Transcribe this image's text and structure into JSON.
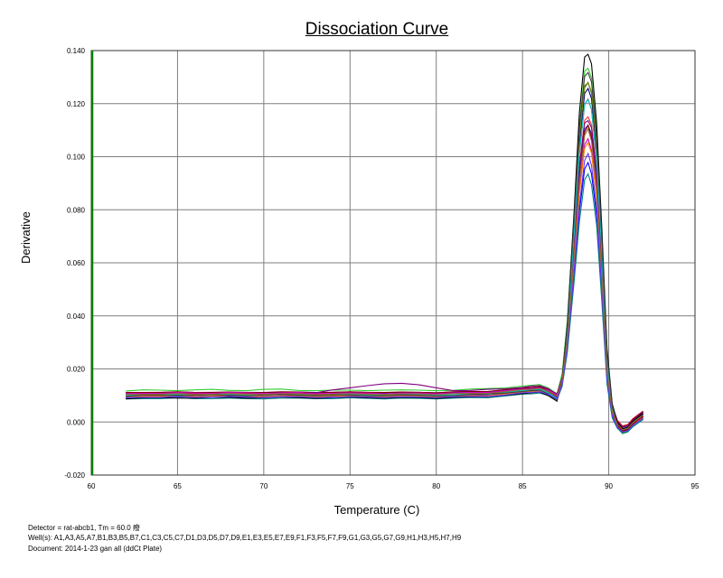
{
  "chart_data": {
    "type": "line",
    "title": "Dissociation Curve",
    "xlabel": "Temperature (C)",
    "ylabel": "Derivative",
    "xlim": [
      60,
      95
    ],
    "ylim": [
      -0.02,
      0.14
    ],
    "x_ticks": [
      60,
      65,
      70,
      75,
      80,
      85,
      90,
      95
    ],
    "y_ticks": [
      -0.02,
      0.0,
      0.02,
      0.04,
      0.06,
      0.08,
      0.1,
      0.12,
      0.14
    ],
    "y_tick_labels": [
      "-0.020",
      "0.000",
      "0.020",
      "0.040",
      "0.060",
      "0.080",
      "0.100",
      "0.120",
      "0.140"
    ],
    "grid": true,
    "legend": "none",
    "x": [
      62.0,
      63.0,
      64.0,
      65.0,
      66.0,
      67.0,
      68.0,
      69.0,
      70.0,
      71.0,
      72.0,
      73.0,
      74.0,
      75.0,
      76.0,
      77.0,
      78.0,
      79.0,
      80.0,
      81.0,
      82.0,
      83.0,
      84.0,
      85.0,
      85.5,
      86.0,
      86.5,
      87.0,
      87.3,
      87.6,
      88.0,
      88.3,
      88.6,
      88.8,
      89.0,
      89.3,
      89.6,
      89.9,
      90.2,
      90.5,
      90.8,
      91.1,
      91.4,
      91.7,
      92.0
    ],
    "series": [
      {
        "color": "#008000",
        "values": [
          0.01,
          0.0105,
          0.0103,
          0.0101,
          0.0104,
          0.0106,
          0.0103,
          0.0101,
          0.0105,
          0.0107,
          0.0102,
          0.0101,
          0.0104,
          0.0103,
          0.0101,
          0.0103,
          0.0105,
          0.0104,
          0.0101,
          0.0102,
          0.0107,
          0.0109,
          0.0112,
          0.0119,
          0.0122,
          0.0124,
          0.0111,
          0.0089,
          0.0169,
          0.036,
          0.075,
          0.1067,
          0.126,
          0.128,
          0.124,
          0.104,
          0.0682,
          0.0255,
          0.0061,
          -0.0006,
          -0.0028,
          -0.0022,
          0.0,
          0.0014,
          0.0027
        ]
      },
      {
        "color": "#33cc33",
        "values": [
          0.0117,
          0.0121,
          0.012,
          0.0118,
          0.0121,
          0.0123,
          0.0119,
          0.0118,
          0.0123,
          0.0124,
          0.0119,
          0.0118,
          0.012,
          0.012,
          0.0118,
          0.012,
          0.0121,
          0.012,
          0.0118,
          0.0119,
          0.0124,
          0.0126,
          0.0128,
          0.0135,
          0.0138,
          0.0141,
          0.0128,
          0.0106,
          0.0182,
          0.0383,
          0.0785,
          0.1119,
          0.1323,
          0.1333,
          0.1298,
          0.1086,
          0.0702,
          0.0252,
          0.0049,
          -0.0022,
          -0.0044,
          -0.0038,
          -0.0016,
          -0.0002,
          0.0011
        ]
      },
      {
        "color": "#000080",
        "values": [
          0.0109,
          0.0111,
          0.0111,
          0.0113,
          0.0111,
          0.0111,
          0.0112,
          0.0112,
          0.0111,
          0.0111,
          0.0113,
          0.0111,
          0.0112,
          0.0113,
          0.0111,
          0.011,
          0.0112,
          0.0112,
          0.011,
          0.0113,
          0.0115,
          0.0115,
          0.0121,
          0.0127,
          0.0129,
          0.0133,
          0.0118,
          0.0097,
          0.0165,
          0.0354,
          0.0737,
          0.1048,
          0.1238,
          0.1257,
          0.1219,
          0.1022,
          0.0667,
          0.0244,
          0.0062,
          0.0005,
          -0.0017,
          -0.0011,
          0.0011,
          0.0025,
          0.0038
        ]
      },
      {
        "color": "#0000ff",
        "values": [
          0.0097,
          0.0097,
          0.0099,
          0.0098,
          0.0097,
          0.0099,
          0.0098,
          0.0096,
          0.0098,
          0.0099,
          0.0098,
          0.0096,
          0.0099,
          0.0099,
          0.0097,
          0.0097,
          0.0099,
          0.0097,
          0.0096,
          0.01,
          0.0101,
          0.0101,
          0.0106,
          0.0113,
          0.0116,
          0.0117,
          0.0109,
          0.0092,
          0.0144,
          0.0279,
          0.0565,
          0.0794,
          0.0954,
          0.0978,
          0.0935,
          0.0778,
          0.0483,
          0.0158,
          0.0027,
          -0.0014,
          -0.0032,
          -0.0027,
          -0.0008,
          0.0006,
          0.0021
        ]
      },
      {
        "color": "#3333cc",
        "values": [
          0.0091,
          0.0094,
          0.0096,
          0.0095,
          0.0094,
          0.0096,
          0.0096,
          0.0094,
          0.0094,
          0.0097,
          0.0096,
          0.0093,
          0.0095,
          0.0097,
          0.0095,
          0.0094,
          0.0097,
          0.0095,
          0.0093,
          0.0097,
          0.0099,
          0.0098,
          0.0104,
          0.0111,
          0.0114,
          0.0116,
          0.0104,
          0.0085,
          0.0147,
          0.0311,
          0.0657,
          0.0936,
          0.1105,
          0.1118,
          0.1087,
          0.0915,
          0.059,
          0.0213,
          0.0053,
          0.0001,
          -0.0021,
          -0.0016,
          0.0005,
          0.0019,
          0.0033
        ]
      },
      {
        "color": "#cc0000",
        "values": [
          0.0105,
          0.0106,
          0.0106,
          0.0109,
          0.0106,
          0.0106,
          0.0108,
          0.0107,
          0.0106,
          0.0107,
          0.0108,
          0.0106,
          0.0106,
          0.0109,
          0.0107,
          0.0105,
          0.0107,
          0.0107,
          0.0105,
          0.0108,
          0.011,
          0.0109,
          0.0116,
          0.0123,
          0.0125,
          0.0128,
          0.0115,
          0.0095,
          0.0162,
          0.0343,
          0.0711,
          0.1011,
          0.1197,
          0.1217,
          0.1177,
          0.0984,
          0.0642,
          0.0237,
          0.0061,
          0.0006,
          -0.0015,
          -0.001,
          0.0012,
          0.0027,
          0.0041
        ]
      },
      {
        "color": "#ff3333",
        "values": [
          0.0097,
          0.0101,
          0.01,
          0.0097,
          0.0101,
          0.0102,
          0.0099,
          0.0097,
          0.0102,
          0.0103,
          0.0098,
          0.0098,
          0.0101,
          0.0099,
          0.0098,
          0.01,
          0.0101,
          0.01,
          0.0098,
          0.0098,
          0.0103,
          0.0106,
          0.0108,
          0.0114,
          0.0119,
          0.0121,
          0.0109,
          0.0088,
          0.0156,
          0.0324,
          0.0676,
          0.0967,
          0.1137,
          0.115,
          0.112,
          0.0943,
          0.0605,
          0.0212,
          0.0041,
          -0.0014,
          -0.0036,
          -0.0031,
          -0.0009,
          0.0005,
          0.0018
        ]
      },
      {
        "color": "#800000",
        "values": [
          0.0111,
          0.0111,
          0.0112,
          0.0114,
          0.0111,
          0.0112,
          0.0113,
          0.0111,
          0.0111,
          0.0114,
          0.0113,
          0.011,
          0.0112,
          0.0114,
          0.0112,
          0.0111,
          0.0113,
          0.0112,
          0.011,
          0.0114,
          0.0115,
          0.0115,
          0.0122,
          0.0128,
          0.013,
          0.0133,
          0.0123,
          0.0106,
          0.0165,
          0.032,
          0.0646,
          0.0909,
          0.1093,
          0.1119,
          0.107,
          0.0889,
          0.0551,
          0.0182,
          0.0033,
          -0.0013,
          -0.0034,
          -0.0029,
          -0.0007,
          0.0009,
          0.0021
        ]
      },
      {
        "color": "#800080",
        "values": [
          0.0098,
          0.0102,
          0.0102,
          0.0099,
          0.0101,
          0.0104,
          0.0101,
          0.0099,
          0.0103,
          0.0104,
          0.0103,
          0.011,
          0.0121,
          0.0129,
          0.0137,
          0.0144,
          0.0146,
          0.014,
          0.0129,
          0.0118,
          0.0119,
          0.0123,
          0.0125,
          0.013,
          0.0135,
          0.0137,
          0.0125,
          0.0104,
          0.0168,
          0.0335,
          0.0683,
          0.0965,
          0.1127,
          0.1136,
          0.1109,
          0.0938,
          0.0608,
          0.0224,
          0.0057,
          0.0002,
          -0.002,
          -0.0014,
          0.0007,
          0.0021,
          0.0034
        ]
      },
      {
        "color": "#cc00cc",
        "values": [
          0.0108,
          0.0108,
          0.0108,
          0.0111,
          0.0109,
          0.0108,
          0.0111,
          0.011,
          0.0107,
          0.011,
          0.0111,
          0.0107,
          0.0108,
          0.011,
          0.0109,
          0.0106,
          0.0109,
          0.0109,
          0.0106,
          0.011,
          0.0111,
          0.0111,
          0.0118,
          0.0124,
          0.0126,
          0.0129,
          0.0119,
          0.0101,
          0.0158,
          0.0306,
          0.0616,
          0.0869,
          0.1045,
          0.1068,
          0.1024,
          0.0852,
          0.0531,
          0.0179,
          0.0036,
          -0.0009,
          -0.0029,
          -0.0024,
          -0.0002,
          0.0013,
          0.0025
        ]
      },
      {
        "color": "#808000",
        "values": [
          0.0098,
          0.0102,
          0.0101,
          0.0099,
          0.0102,
          0.0104,
          0.01,
          0.0099,
          0.0104,
          0.0104,
          0.01,
          0.0099,
          0.0101,
          0.0101,
          0.0098,
          0.0101,
          0.0102,
          0.01,
          0.0098,
          0.01,
          0.0104,
          0.0106,
          0.0109,
          0.0116,
          0.0119,
          0.0121,
          0.0109,
          0.0087,
          0.0163,
          0.0356,
          0.0746,
          0.1071,
          0.1268,
          0.1278,
          0.1245,
          0.1043,
          0.0675,
          0.0243,
          0.0048,
          -0.002,
          -0.0041,
          -0.0035,
          -0.0013,
          0.0001,
          0.0014
        ]
      },
      {
        "color": "#008080",
        "values": [
          0.0087,
          0.0088,
          0.0088,
          0.0091,
          0.0088,
          0.0088,
          0.009,
          0.0088,
          0.0087,
          0.009,
          0.009,
          0.0088,
          0.0088,
          0.0091,
          0.0089,
          0.0087,
          0.009,
          0.0089,
          0.0087,
          0.009,
          0.0092,
          0.0091,
          0.0098,
          0.0105,
          0.0106,
          0.0109,
          0.01,
          0.0084,
          0.0134,
          0.0264,
          0.0535,
          0.0756,
          0.0913,
          0.0935,
          0.0894,
          0.0741,
          0.0456,
          0.0142,
          0.0016,
          -0.0024,
          -0.0042,
          -0.0037,
          -0.0018,
          -0.0004,
          0.0009
        ]
      },
      {
        "color": "#ff8000",
        "values": [
          0.0095,
          0.0096,
          0.0097,
          0.0097,
          0.0096,
          0.0098,
          0.0096,
          0.0095,
          0.0097,
          0.0098,
          0.0096,
          0.0095,
          0.0098,
          0.0098,
          0.0095,
          0.0096,
          0.0098,
          0.0096,
          0.0095,
          0.0098,
          0.0099,
          0.01,
          0.0105,
          0.0111,
          0.0114,
          0.0116,
          0.0105,
          0.0087,
          0.0144,
          0.0296,
          0.061,
          0.0862,
          0.1032,
          0.1053,
          0.1013,
          0.0846,
          0.0534,
          0.0184,
          0.0038,
          -0.0008,
          -0.0028,
          -0.0023,
          -0.0003,
          0.0012,
          0.0025
        ]
      },
      {
        "color": "#00cccc",
        "values": [
          0.0102,
          0.0102,
          0.0102,
          0.0105,
          0.0102,
          0.0102,
          0.0105,
          0.0103,
          0.0101,
          0.0104,
          0.0105,
          0.0101,
          0.0102,
          0.0104,
          0.0103,
          0.01,
          0.0103,
          0.0103,
          0.0101,
          0.0103,
          0.0106,
          0.0105,
          0.0111,
          0.0119,
          0.012,
          0.0123,
          0.011,
          0.0089,
          0.0159,
          0.0341,
          0.0715,
          0.1018,
          0.1198,
          0.1215,
          0.1179,
          0.0989,
          0.0639,
          0.0229,
          0.0052,
          -0.0005,
          -0.0026,
          -0.0021,
          0.0001,
          0.0016,
          0.0029
        ]
      },
      {
        "color": "#000000",
        "values": [
          0.0087,
          0.0091,
          0.0092,
          0.009,
          0.009,
          0.0093,
          0.0093,
          0.009,
          0.0091,
          0.0094,
          0.0092,
          0.0089,
          0.0092,
          0.0094,
          0.0091,
          0.009,
          0.0093,
          0.0092,
          0.0089,
          0.0093,
          0.0095,
          0.0095,
          0.0101,
          0.0107,
          0.011,
          0.0113,
          0.0099,
          0.0078,
          0.016,
          0.0373,
          0.0802,
          0.1166,
          0.1376,
          0.1386,
          0.135,
          0.1126,
          0.0732,
          0.0276,
          0.0069,
          -0.0003,
          -0.0025,
          -0.002,
          0.0003,
          0.0018,
          0.0031
        ]
      },
      {
        "color": "#404040",
        "values": [
          0.0096,
          0.0101,
          0.0101,
          0.0099,
          0.0101,
          0.0103,
          0.01,
          0.0098,
          0.0102,
          0.0104,
          0.0101,
          0.0099,
          0.0101,
          0.0102,
          0.0099,
          0.0099,
          0.0102,
          0.0101,
          0.0098,
          0.0099,
          0.0104,
          0.0106,
          0.0109,
          0.0115,
          0.0118,
          0.012,
          0.0106,
          0.0083,
          0.0161,
          0.0364,
          0.0773,
          0.1107,
          0.1303,
          0.1317,
          0.1282,
          0.1071,
          0.0695,
          0.0256,
          0.006,
          -0.0008,
          -0.003,
          -0.0025,
          -0.0003,
          0.0012,
          0.0025
        ]
      },
      {
        "color": "#6633ff",
        "values": [
          0.0092,
          0.0093,
          0.0093,
          0.0096,
          0.0093,
          0.0093,
          0.0096,
          0.0094,
          0.0092,
          0.0095,
          0.0095,
          0.0092,
          0.0093,
          0.0096,
          0.0094,
          0.0092,
          0.0095,
          0.0094,
          0.0092,
          0.0095,
          0.0097,
          0.0096,
          0.0102,
          0.011,
          0.0111,
          0.0114,
          0.0104,
          0.0087,
          0.0142,
          0.0283,
          0.0578,
          0.0817,
          0.0986,
          0.1012,
          0.0967,
          0.0804,
          0.0498,
          0.0161,
          0.0024,
          -0.002,
          -0.0038,
          -0.0033,
          -0.0013,
          0.0001,
          0.0014
        ]
      },
      {
        "color": "#996633",
        "values": [
          0.0104,
          0.0104,
          0.0105,
          0.0107,
          0.0104,
          0.0105,
          0.0107,
          0.0105,
          0.0104,
          0.0107,
          0.0106,
          0.0103,
          0.0105,
          0.0107,
          0.0105,
          0.0104,
          0.0106,
          0.0106,
          0.0103,
          0.0107,
          0.0108,
          0.0108,
          0.0115,
          0.0122,
          0.0123,
          0.0127,
          0.0116,
          0.0098,
          0.0158,
          0.0313,
          0.0637,
          0.09,
          0.1081,
          0.1105,
          0.1058,
          0.0882,
          0.0552,
          0.0187,
          0.0038,
          -0.0008,
          -0.0029,
          -0.0024,
          -0.0002,
          0.0013,
          0.0026
        ]
      }
    ]
  },
  "footer": {
    "detector": "Detector = rat-abcb1, Tm = 60.0 癈",
    "wells": "Well(s): A1,A3,A5,A7,B1,B3,B5,B7,C1,C3,C5,C7,D1,D3,D5,D7,D9,E1,E3,E5,E7,E9,F1,F3,F5,F7,F9,G1,G3,G5,G7,G9,H1,H3,H5,H7,H9",
    "document": "Document: 2014-1-23 gan all (ddCt Plate)"
  }
}
